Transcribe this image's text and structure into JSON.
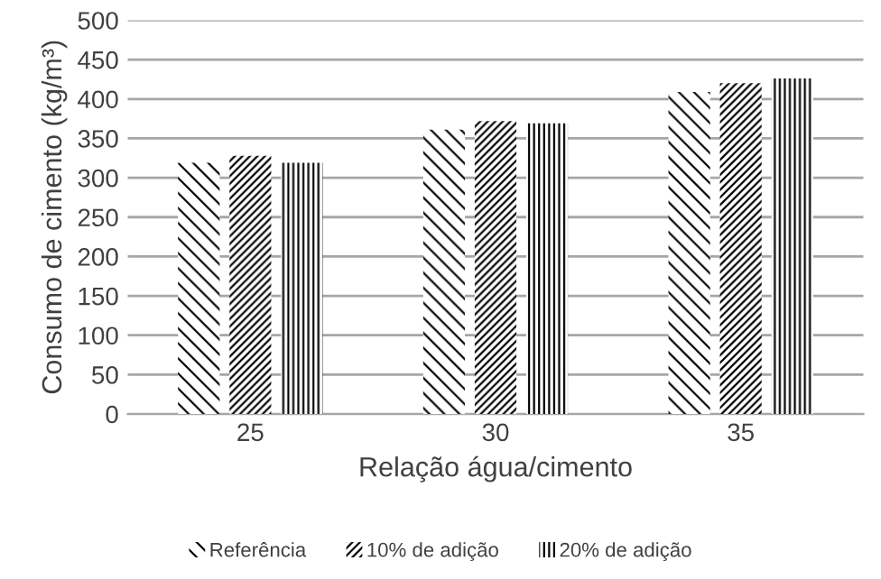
{
  "chart_data": {
    "type": "bar",
    "xlabel": "Relação água/cimento",
    "ylabel": "Consumo de cimento (kg/m³)",
    "categories": [
      "25",
      "30",
      "35"
    ],
    "series": [
      {
        "name": "Referência",
        "color": "#000000",
        "values": [
          319,
          361,
          409
        ]
      },
      {
        "name": "10% de adição",
        "color": "#000000",
        "values": [
          328,
          372,
          420
        ]
      },
      {
        "name": "20% de adição",
        "color": "#000000",
        "values": [
          319,
          369,
          426
        ]
      }
    ],
    "ylim": [
      0,
      500
    ],
    "yticks": [
      0,
      50,
      100,
      150,
      200,
      250,
      300,
      350,
      400,
      450,
      500
    ],
    "grid": "y",
    "legend": "bottom"
  }
}
